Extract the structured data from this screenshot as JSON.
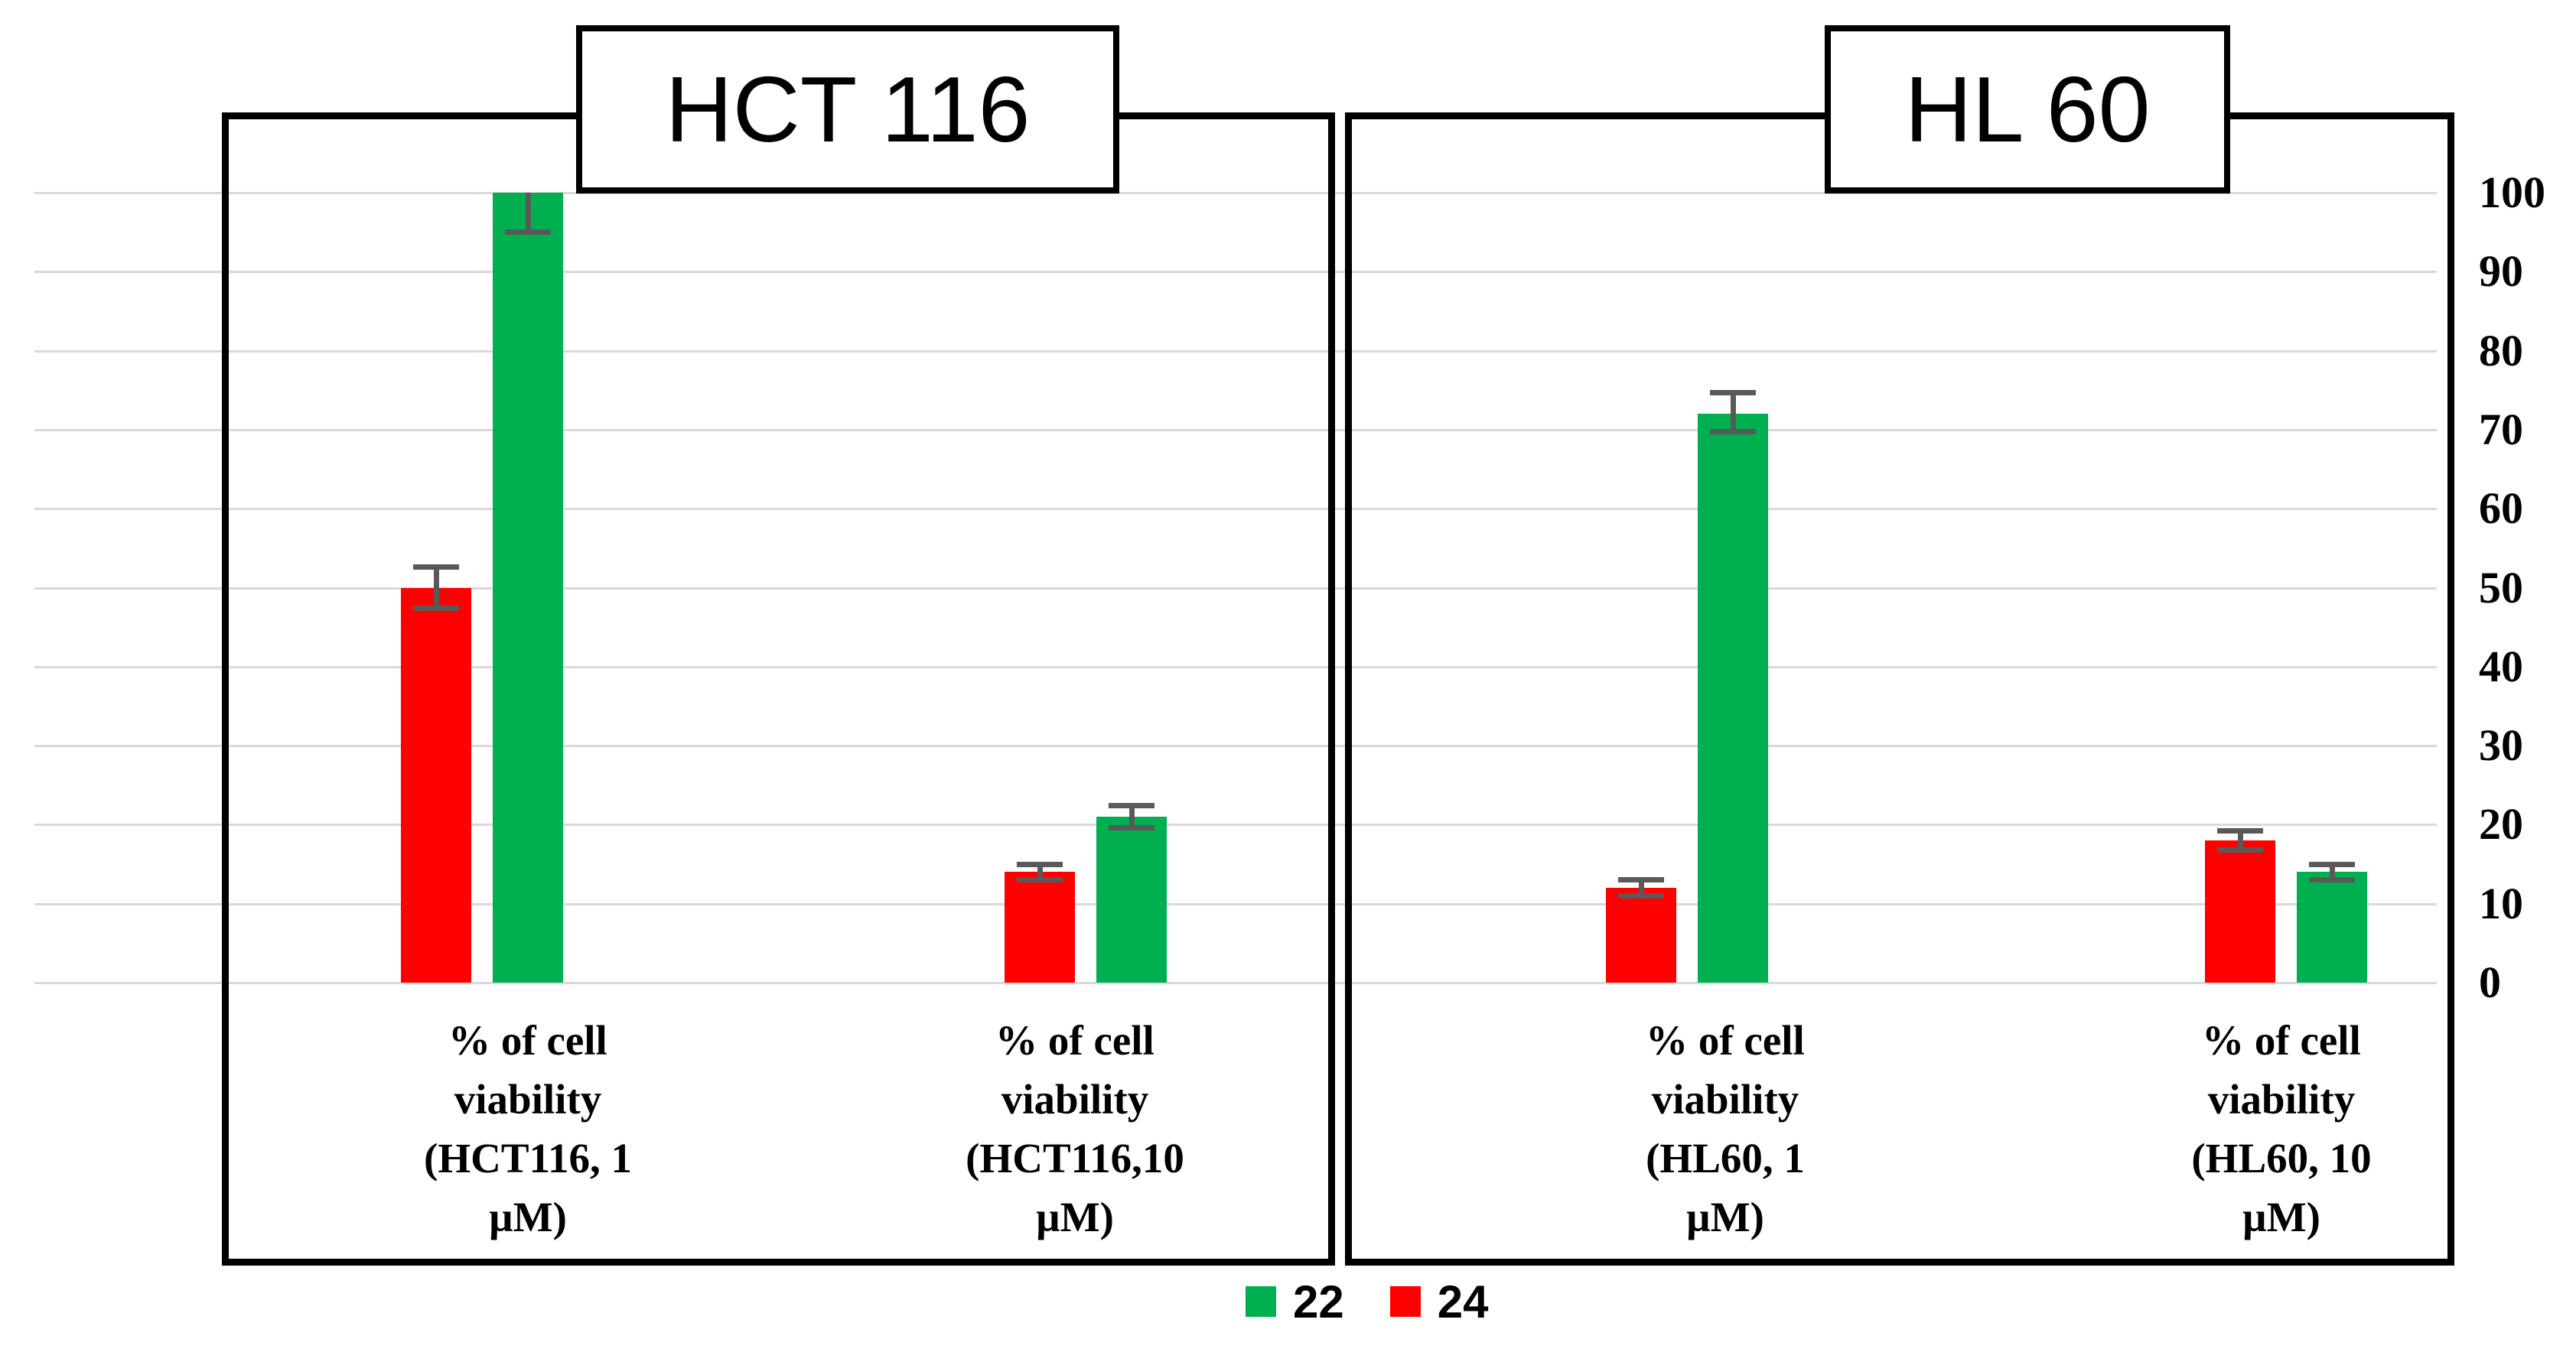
{
  "colors": {
    "series_22_green": "#00B050",
    "series_24_red": "#FF0000",
    "error_bar": "#595959",
    "gridline": "#D9D9D9",
    "border": "#000000",
    "background": "#FFFFFF"
  },
  "chart_data": {
    "type": "bar",
    "panels": [
      {
        "title": "HCT 116"
      },
      {
        "title": "HL 60"
      }
    ],
    "series": [
      {
        "name": "22",
        "color": "#00B050"
      },
      {
        "name": "24",
        "color": "#FF0000"
      }
    ],
    "legend": {
      "position": "bottom-center",
      "entries": [
        {
          "label": "22",
          "color": "#00B050"
        },
        {
          "label": "24",
          "color": "#FF0000"
        }
      ]
    },
    "ylim": [
      0,
      100
    ],
    "ytick_step": 10,
    "yaxis_side": "right",
    "ytick_labels": [
      "100",
      "90",
      "80",
      "70",
      "60",
      "50",
      "40",
      "30",
      "20",
      "10",
      "0"
    ],
    "grid": true,
    "groups": [
      {
        "panel": "HCT 116",
        "label": "% of cell viability (HCT116, 1 µM)",
        "label_lines": [
          "% of cell",
          "viability",
          "(HCT116, 1",
          "µM)"
        ],
        "bars": [
          {
            "series": "24",
            "value": 50,
            "err_up": 2.6,
            "err_down": 2.6
          },
          {
            "series": "22",
            "value": 100,
            "err_up": 0,
            "err_down": 5
          }
        ]
      },
      {
        "panel": "HCT 116",
        "label": "% of cell viability (HCT116,10 µM)",
        "label_lines": [
          "% of cell",
          "viability",
          "(HCT116,10",
          "µM)"
        ],
        "bars": [
          {
            "series": "24",
            "value": 14,
            "err_up": 1,
            "err_down": 1
          },
          {
            "series": "22",
            "value": 21,
            "err_up": 1.4,
            "err_down": 1.4
          }
        ]
      },
      {
        "panel": "HL 60",
        "label": "% of cell viability (HL60, 1 µM)",
        "label_lines": [
          "% of cell",
          "viability",
          "(HL60, 1",
          "µM)"
        ],
        "bars": [
          {
            "series": "24",
            "value": 12,
            "err_up": 1,
            "err_down": 1
          },
          {
            "series": "22",
            "value": 72,
            "err_up": 2.7,
            "err_down": 2.3
          }
        ]
      },
      {
        "panel": "HL 60",
        "label": "% of cell viability (HL60, 10 µM)",
        "label_lines": [
          "% of cell",
          "viability",
          "(HL60, 10",
          "µM)"
        ],
        "bars": [
          {
            "series": "24",
            "value": 18,
            "err_up": 1.2,
            "err_down": 1.2
          },
          {
            "series": "22",
            "value": 14,
            "err_up": 1,
            "err_down": 1
          }
        ]
      }
    ]
  }
}
